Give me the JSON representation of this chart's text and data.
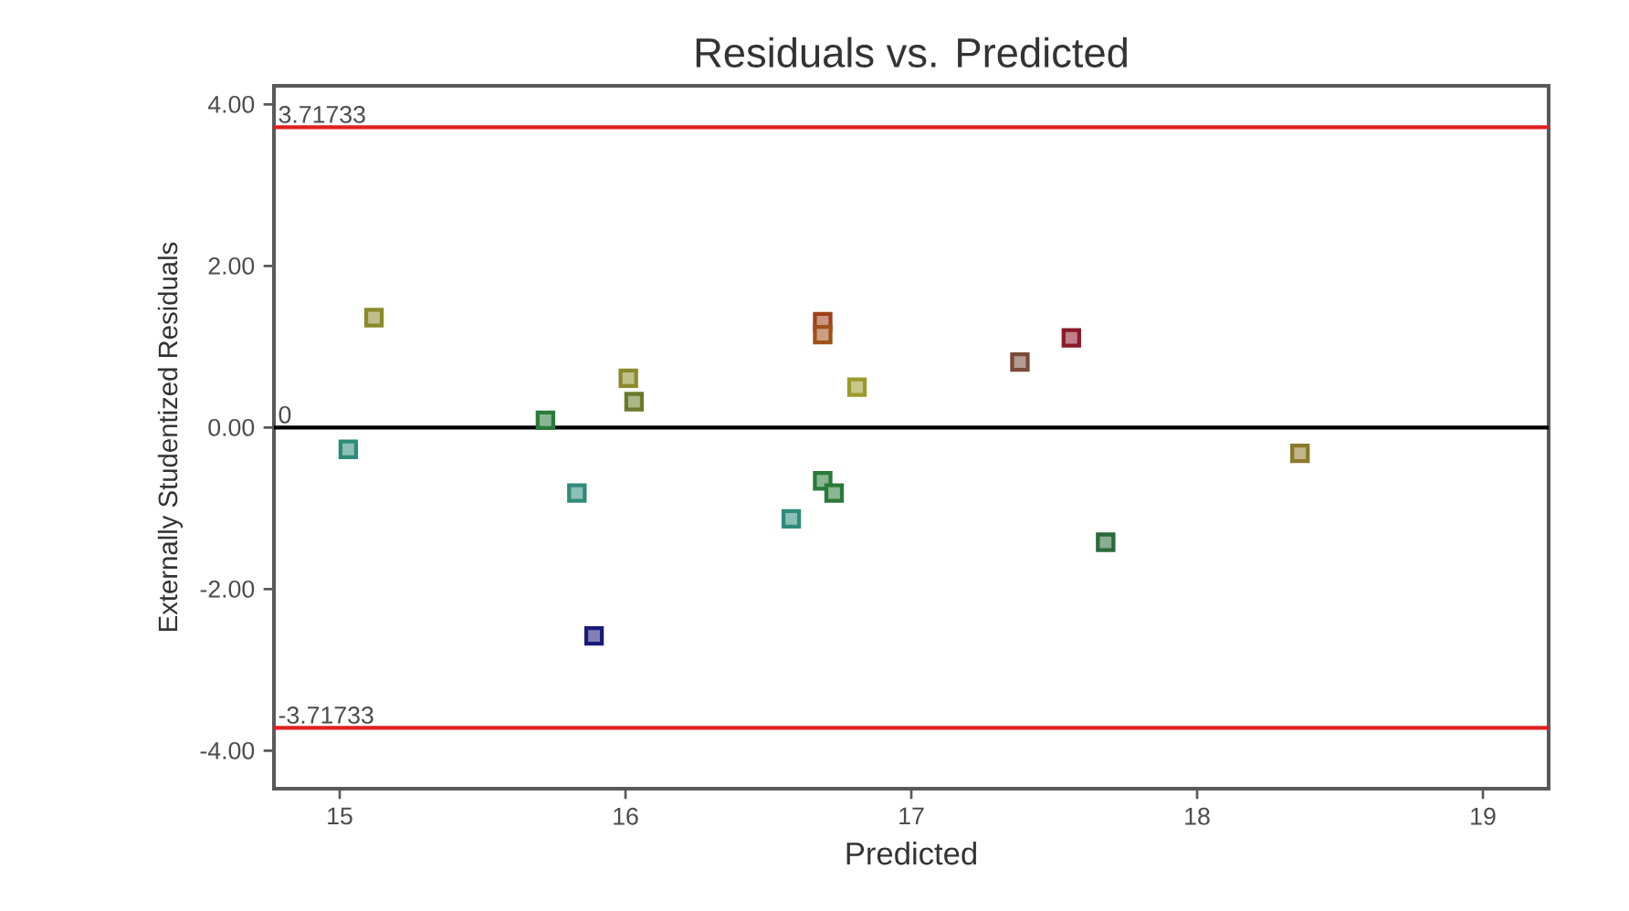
{
  "chart_data": {
    "type": "scatter",
    "title": "Residuals vs. Predicted",
    "xlabel": "Predicted",
    "ylabel": "Externally Studentized Residuals",
    "x": [
      15.12,
      15.03,
      15.72,
      15.83,
      15.89,
      16.01,
      16.03,
      16.58,
      16.69,
      16.69,
      16.69,
      16.73,
      16.81,
      17.38,
      17.56,
      17.68,
      18.36
    ],
    "values": [
      1.36,
      -0.27,
      0.09,
      -0.81,
      -2.58,
      0.61,
      0.32,
      -1.13,
      1.31,
      1.15,
      -0.66,
      -0.81,
      0.5,
      0.81,
      1.11,
      -1.42,
      -0.32
    ],
    "colors": [
      "#8a8a2a",
      "#2e8b7a",
      "#2a7a3a",
      "#2e8b7a",
      "#1a1a7a",
      "#8a8a2a",
      "#6a7a2a",
      "#2e8b7a",
      "#a0401a",
      "#a0501a",
      "#2a7a3a",
      "#2a7a3a",
      "#9a9a2a",
      "#7a4a3a",
      "#8b1a2a",
      "#2a6a3a",
      "#8a7a2a"
    ],
    "marker": "square",
    "xlim": [
      14.77,
      19.23
    ],
    "ylim": [
      -4.47,
      4.23
    ],
    "xticks": [
      15,
      16,
      17,
      18,
      19
    ],
    "yticks": [
      {
        "value": -4,
        "label": "-4.00"
      },
      {
        "value": -2,
        "label": "-2.00"
      },
      {
        "value": 0,
        "label": "0.00"
      },
      {
        "value": 2,
        "label": "2.00"
      },
      {
        "value": 4,
        "label": "4.00"
      }
    ],
    "ref_lines": [
      {
        "axis": "y",
        "value": 3.71733,
        "label": "3.71733",
        "color": "#e02020"
      },
      {
        "axis": "y",
        "value": 0,
        "label": "0",
        "color": "#000000"
      },
      {
        "axis": "y",
        "value": -3.71733,
        "label": "-3.71733",
        "color": "#e02020"
      }
    ]
  }
}
